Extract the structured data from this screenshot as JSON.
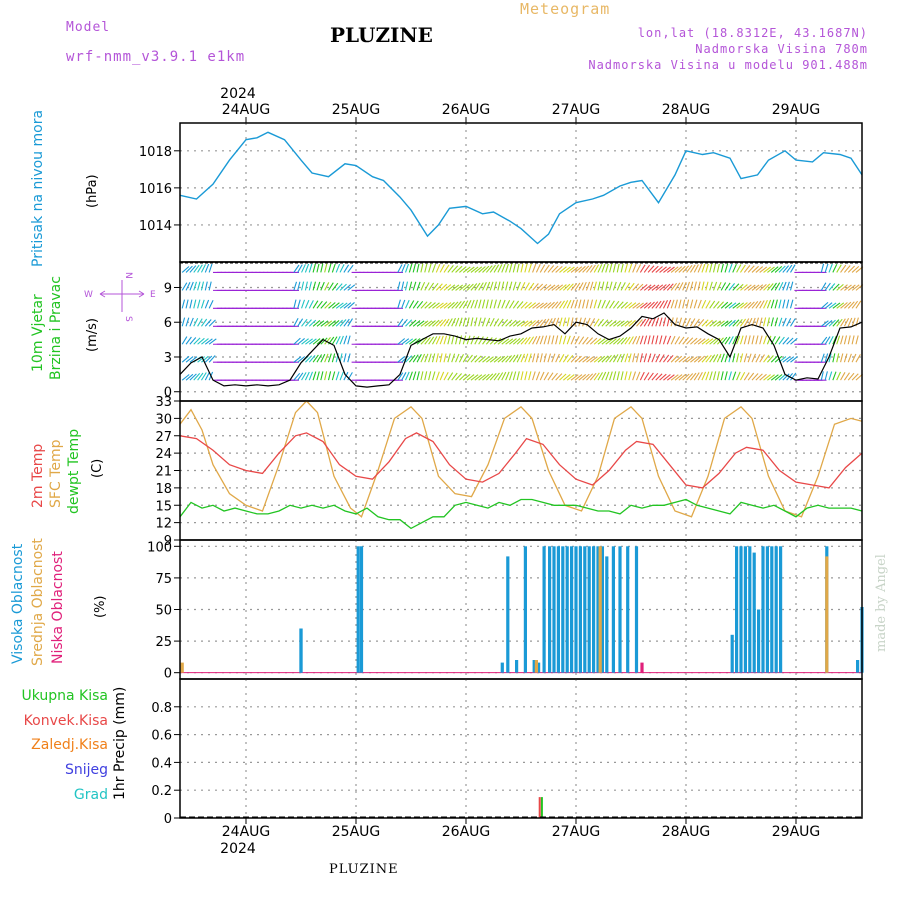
{
  "header": {
    "model_label": "Model",
    "model_name": "wrf-nmm_v3.9.1 e1km",
    "title": "PLUZINE",
    "meteogram_label": "Meteogram",
    "coords": "lon,lat (18.8312E, 43.1687N)",
    "elevation": "Nadmorska Visina 780m",
    "model_elevation": "Nadmorska Visina u modelu 901.488m",
    "footer": "PLUZINE",
    "credit": "made by Angel"
  },
  "colors": {
    "pressure": "#1a9ad6",
    "temp2m": "#e84848",
    "sfc_temp": "#e0a848",
    "dewpt": "#22c422",
    "high_cloud": "#1a9ad6",
    "mid_cloud": "#e0a848",
    "low_cloud": "#e0207a",
    "precip_total": "#22c422",
    "precip_conv": "#e84848",
    "precip_frz": "#f0801a",
    "snow": "#4040e0",
    "grad": "#22c4c4",
    "purple_label": "#b455d8"
  },
  "chart_data": [
    {
      "type": "line",
      "panel": "pressure",
      "ylabel_lines": [
        "Pritisak na nivou mora"
      ],
      "unit": "(hPa)",
      "year": "2024",
      "x_labels": [
        "24AUG",
        "25AUG",
        "26AUG",
        "27AUG",
        "28AUG",
        "29AUG"
      ],
      "x_range": [
        -0.6,
        5.6
      ],
      "ylim": [
        1012,
        1019.5
      ],
      "yticks": [
        "1014",
        "1016",
        "1018"
      ],
      "grid": true,
      "series": [
        {
          "x": [
            -0.6,
            -0.45,
            -0.3,
            -0.15,
            0,
            0.1,
            0.2,
            0.35,
            0.5,
            0.6,
            0.75,
            0.9,
            1.0,
            1.15,
            1.25,
            1.4,
            1.5,
            1.65,
            1.75,
            1.85,
            2.0,
            2.15,
            2.25,
            2.4,
            2.5,
            2.65,
            2.75,
            2.85,
            3.0,
            3.15,
            3.25,
            3.4,
            3.5,
            3.6,
            3.75,
            3.9,
            4.0,
            4.15,
            4.25,
            4.4,
            4.5,
            4.65,
            4.75,
            4.9,
            5.0,
            5.15,
            5.25,
            5.4,
            5.5,
            5.6
          ],
          "y": [
            1015.6,
            1015.4,
            1016.2,
            1017.5,
            1018.6,
            1018.7,
            1019.0,
            1018.6,
            1017.5,
            1016.8,
            1016.6,
            1017.3,
            1017.2,
            1016.6,
            1016.4,
            1015.5,
            1014.8,
            1013.4,
            1014.0,
            1014.9,
            1015.0,
            1014.6,
            1014.7,
            1014.2,
            1013.8,
            1013.0,
            1013.5,
            1014.6,
            1015.2,
            1015.4,
            1015.6,
            1016.1,
            1016.3,
            1016.4,
            1015.2,
            1016.7,
            1018.0,
            1017.8,
            1017.9,
            1017.6,
            1016.5,
            1016.7,
            1017.5,
            1018.0,
            1017.5,
            1017.4,
            1017.9,
            1017.8,
            1017.6,
            1016.7
          ]
        }
      ]
    },
    {
      "type": "line",
      "panel": "wind",
      "ylabel_lines": [
        "10m Vjetar",
        "Brzina i Pravac"
      ],
      "unit": "(m/s)",
      "x_range": [
        -0.6,
        5.6
      ],
      "ylim": [
        -0.8,
        11.2
      ],
      "yticks": [
        "0",
        "3",
        "6",
        "9"
      ],
      "compass": {
        "n": "N",
        "s": "S",
        "w": "W",
        "e": "E"
      },
      "grid": true,
      "series": [
        {
          "name": "speed",
          "x": [
            -0.6,
            -0.5,
            -0.4,
            -0.3,
            -0.2,
            -0.1,
            0,
            0.1,
            0.2,
            0.3,
            0.4,
            0.5,
            0.6,
            0.7,
            0.8,
            0.9,
            1.0,
            1.1,
            1.2,
            1.3,
            1.4,
            1.5,
            1.6,
            1.7,
            1.8,
            1.9,
            2.0,
            2.1,
            2.2,
            2.3,
            2.4,
            2.5,
            2.6,
            2.7,
            2.8,
            2.9,
            3.0,
            3.1,
            3.2,
            3.3,
            3.4,
            3.5,
            3.6,
            3.7,
            3.8,
            3.9,
            4.0,
            4.1,
            4.2,
            4.3,
            4.4,
            4.5,
            4.6,
            4.7,
            4.8,
            4.9,
            5.0,
            5.1,
            5.2,
            5.3,
            5.4,
            5.5,
            5.6
          ],
          "y": [
            1.5,
            2.5,
            3.0,
            1.0,
            0.5,
            0.6,
            0.5,
            0.6,
            0.5,
            0.6,
            1.0,
            2.5,
            3.5,
            4.5,
            4.0,
            1.5,
            0.5,
            0.4,
            0.5,
            0.6,
            1.5,
            4.0,
            4.5,
            5.0,
            5.0,
            4.8,
            4.5,
            4.6,
            4.5,
            4.4,
            4.8,
            5.0,
            5.5,
            5.6,
            5.8,
            5.0,
            6.0,
            5.8,
            5.0,
            4.5,
            4.8,
            5.5,
            6.5,
            6.3,
            6.8,
            5.8,
            5.5,
            5.6,
            5.0,
            4.5,
            3.0,
            5.5,
            5.8,
            5.5,
            4.0,
            1.5,
            1.0,
            1.2,
            1.1,
            3.0,
            5.5,
            5.6,
            6.0
          ]
        }
      ]
    },
    {
      "type": "line",
      "panel": "temperature",
      "ylabel_lines": [
        "2m Temp",
        "SFC Temp",
        "dewpt Temp"
      ],
      "unit": "(C)",
      "x_range": [
        -0.6,
        5.6
      ],
      "ylim": [
        9,
        33
      ],
      "yticks": [
        "9",
        "12",
        "15",
        "18",
        "21",
        "24",
        "27",
        "30",
        "33"
      ],
      "grid": true,
      "series": [
        {
          "name": "2m Temp",
          "x": [
            -0.6,
            -0.45,
            -0.3,
            -0.15,
            0,
            0.15,
            0.3,
            0.45,
            0.55,
            0.7,
            0.85,
            1.0,
            1.15,
            1.3,
            1.45,
            1.55,
            1.7,
            1.85,
            2.0,
            2.15,
            2.3,
            2.45,
            2.55,
            2.7,
            2.85,
            3.0,
            3.15,
            3.3,
            3.45,
            3.55,
            3.7,
            3.85,
            4.0,
            4.15,
            4.3,
            4.45,
            4.55,
            4.7,
            4.85,
            5.0,
            5.15,
            5.3,
            5.45,
            5.6
          ],
          "y": [
            27,
            26.5,
            24.5,
            22,
            21,
            20.5,
            24,
            27,
            27.5,
            26,
            22,
            20,
            19.5,
            22.5,
            26.5,
            27.5,
            26,
            22,
            19.5,
            19,
            20.5,
            24,
            26.5,
            25.5,
            22,
            19.5,
            18.5,
            21,
            24.5,
            26,
            25.5,
            22,
            18.5,
            18,
            20.5,
            24,
            25,
            24.5,
            21,
            19,
            18.5,
            18,
            21.5,
            24
          ]
        },
        {
          "name": "SFC Temp",
          "x": [
            -0.6,
            -0.5,
            -0.4,
            -0.3,
            -0.15,
            0,
            0.15,
            0.3,
            0.45,
            0.55,
            0.65,
            0.8,
            0.95,
            1.05,
            1.2,
            1.35,
            1.5,
            1.6,
            1.75,
            1.9,
            2.05,
            2.2,
            2.35,
            2.5,
            2.6,
            2.75,
            2.9,
            3.05,
            3.2,
            3.35,
            3.5,
            3.6,
            3.75,
            3.9,
            4.05,
            4.2,
            4.35,
            4.5,
            4.6,
            4.75,
            4.9,
            5.05,
            5.2,
            5.35,
            5.5,
            5.6
          ],
          "y": [
            29,
            31.5,
            28,
            22,
            17,
            15,
            14,
            22,
            31,
            33,
            31,
            20,
            14.5,
            13,
            21,
            30,
            32,
            30,
            20,
            17,
            16.5,
            22,
            30,
            32,
            30,
            21,
            15,
            14,
            20,
            30,
            32,
            30,
            20,
            14,
            13,
            20,
            30,
            32,
            30,
            20,
            14,
            13,
            20,
            29,
            30,
            29.5
          ]
        },
        {
          "name": "dewpt Temp",
          "x": [
            -0.6,
            -0.5,
            -0.4,
            -0.3,
            -0.2,
            -0.1,
            0,
            0.1,
            0.2,
            0.3,
            0.4,
            0.5,
            0.6,
            0.7,
            0.8,
            0.9,
            1.0,
            1.1,
            1.2,
            1.3,
            1.4,
            1.5,
            1.6,
            1.7,
            1.8,
            1.9,
            2.0,
            2.1,
            2.2,
            2.3,
            2.4,
            2.5,
            2.6,
            2.7,
            2.8,
            2.9,
            3.0,
            3.1,
            3.2,
            3.3,
            3.4,
            3.5,
            3.6,
            3.7,
            3.8,
            3.9,
            4.0,
            4.1,
            4.2,
            4.3,
            4.4,
            4.5,
            4.6,
            4.7,
            4.8,
            4.9,
            5.0,
            5.1,
            5.2,
            5.3,
            5.4,
            5.5,
            5.6
          ],
          "y": [
            13,
            15.5,
            14.5,
            15,
            14,
            14.5,
            14,
            13.5,
            13.5,
            14,
            15,
            14.5,
            15,
            14.5,
            15,
            14,
            13.5,
            14.5,
            13,
            12.5,
            12.5,
            11,
            12,
            13,
            13,
            15,
            15.5,
            15,
            14.5,
            15.5,
            15,
            16,
            16,
            15.5,
            15,
            15,
            15,
            14.5,
            14,
            14,
            13.5,
            15,
            14.5,
            15,
            15,
            15.5,
            16,
            15,
            14.5,
            14,
            13.5,
            15.5,
            15,
            14.5,
            15,
            14,
            13,
            14.5,
            15,
            14.5,
            14.5,
            14.5,
            14
          ]
        }
      ]
    },
    {
      "type": "bar",
      "panel": "cloud",
      "ylabel_lines": [
        "Visoka Oblacnost",
        "Srednja Oblacnost",
        "Niska Oblacnost"
      ],
      "unit": "(%)",
      "x_range": [
        -0.6,
        5.6
      ],
      "ylim": [
        -5,
        105
      ],
      "yticks": [
        "0",
        "25",
        "50",
        "75",
        "100"
      ],
      "grid": true,
      "series": [
        {
          "name": "Visoka Oblacnost",
          "x": [
            0.5,
            0.5,
            1.02,
            1.05,
            2.33,
            2.38,
            2.46,
            2.54,
            2.62,
            2.66,
            2.71,
            2.76,
            2.8,
            2.84,
            2.88,
            2.92,
            2.96,
            3.0,
            3.04,
            3.08,
            3.12,
            3.16,
            3.2,
            3.24,
            3.28,
            3.34,
            3.4,
            3.47,
            3.55,
            4.42,
            4.46,
            4.5,
            4.54,
            4.58,
            4.62,
            4.66,
            4.7,
            4.74,
            4.78,
            4.82,
            4.86,
            5.28,
            5.56,
            5.6
          ],
          "y": [
            35,
            35,
            100,
            100,
            8,
            92,
            10,
            100,
            10,
            8,
            100,
            100,
            100,
            100,
            100,
            100,
            100,
            100,
            100,
            100,
            100,
            100,
            100,
            100,
            92,
            100,
            100,
            100,
            100,
            30,
            100,
            100,
            100,
            100,
            95,
            50,
            100,
            100,
            100,
            100,
            100,
            100,
            10,
            52
          ]
        },
        {
          "name": "Srednja Oblacnost",
          "x": [
            -0.58,
            2.64,
            3.22,
            5.28
          ],
          "y": [
            8,
            10,
            100,
            92
          ]
        },
        {
          "name": "Niska Oblacnost",
          "x": [
            3.6
          ],
          "y": [
            8
          ]
        }
      ]
    },
    {
      "type": "bar",
      "panel": "precip",
      "ylabel_lines": [
        "1hr Precip (mm)"
      ],
      "legend": [
        "Ukupna Kisa",
        "Konvek.Kisa",
        "Zaledj.Kisa",
        "Snijeg",
        "Grad"
      ],
      "x_labels": [
        "24AUG",
        "25AUG",
        "26AUG",
        "27AUG",
        "28AUG",
        "29AUG"
      ],
      "year": "2024",
      "x_range": [
        -0.6,
        5.6
      ],
      "ylim": [
        0,
        1.0
      ],
      "yticks": [
        "0",
        "0.2",
        "0.4",
        "0.6",
        "0.8"
      ],
      "grid": true,
      "series": [
        {
          "name": "Ukupna Kisa",
          "x": [
            2.69
          ],
          "y": [
            0.15
          ]
        },
        {
          "name": "Konvek.Kisa",
          "x": [
            2.67
          ],
          "y": [
            0.15
          ]
        }
      ]
    }
  ]
}
